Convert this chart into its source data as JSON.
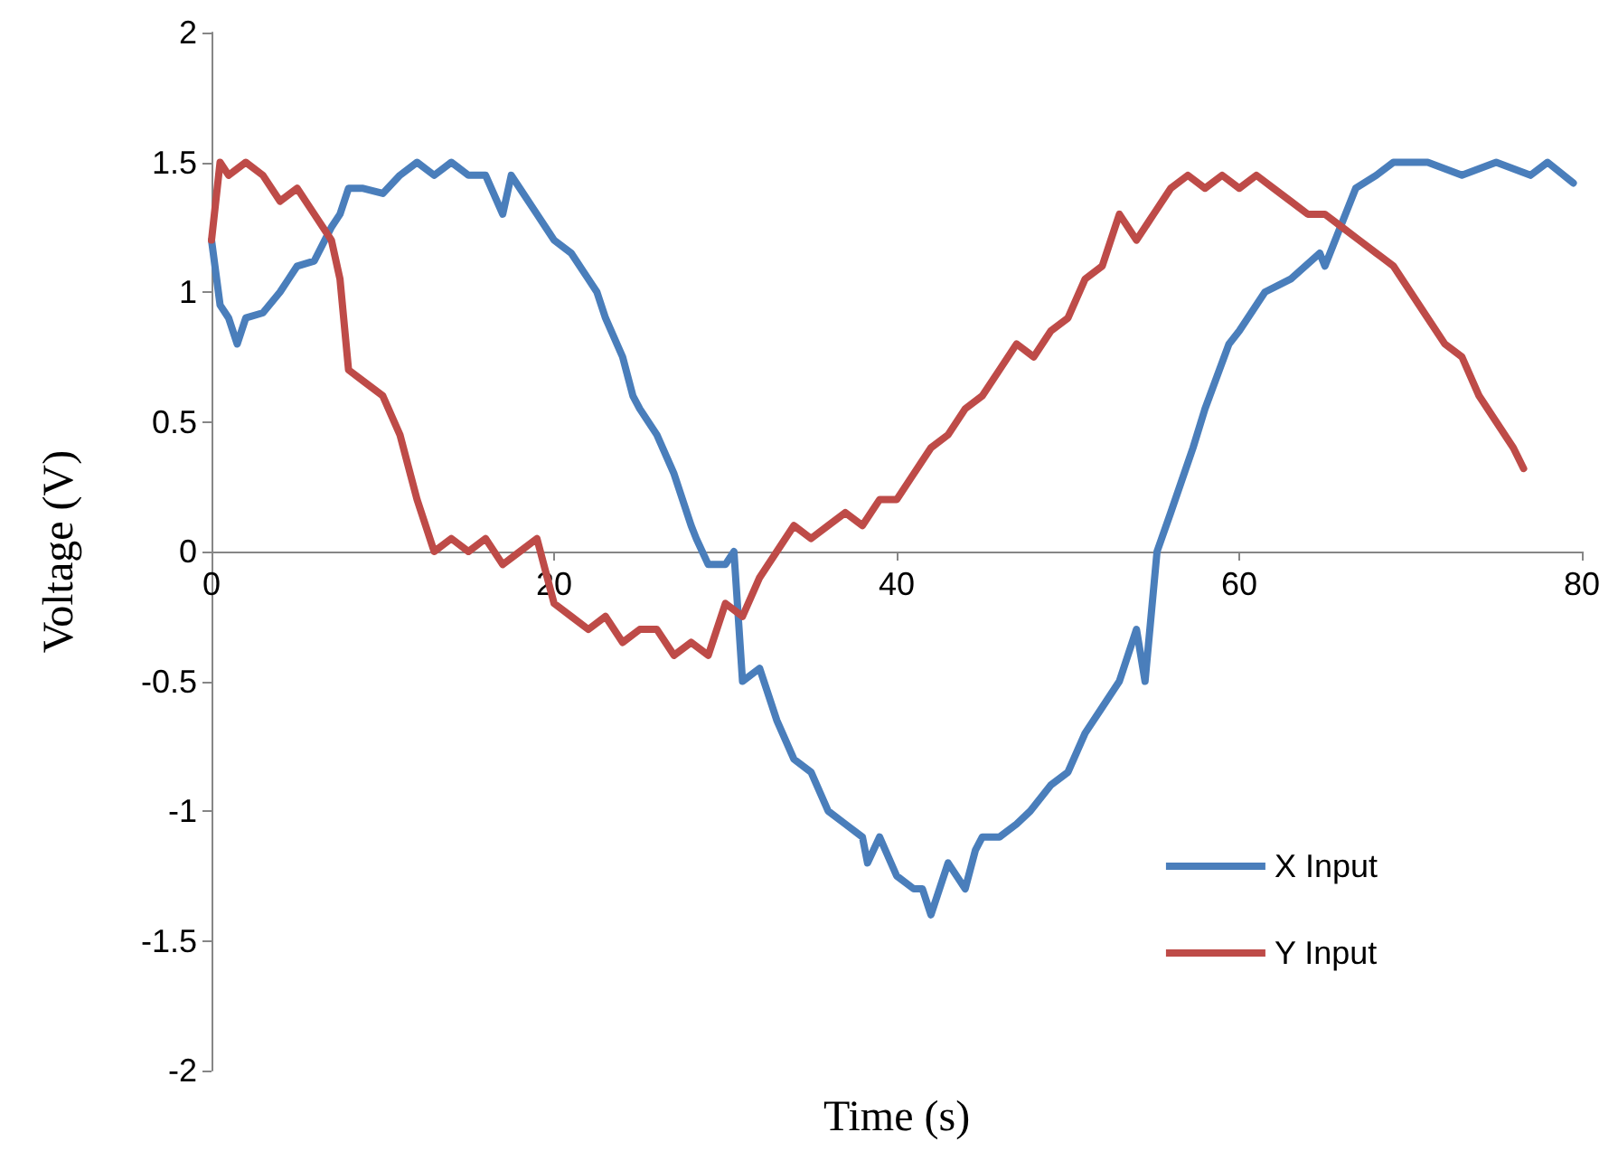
{
  "chart_data": {
    "type": "line",
    "xlabel": "Time (s)",
    "ylabel": "Voltage (V)",
    "xlim": [
      0,
      80
    ],
    "xticks": [
      0,
      20,
      40,
      60,
      80
    ],
    "ylim": [
      -2,
      2
    ],
    "yticks": [
      -2,
      -1.5,
      -1,
      -0.5,
      0,
      0.5,
      1,
      1.5,
      2
    ],
    "grid": false,
    "legend": "bottom right",
    "marker": "none",
    "line_style": "solid",
    "series": [
      {
        "name": "X Input",
        "color": "#4a7ebb",
        "x": [
          0,
          0.5,
          1,
          1.5,
          2,
          3,
          4,
          4.5,
          5,
          6,
          7,
          7.5,
          8,
          8.8,
          10,
          11,
          12,
          13,
          14,
          15,
          16,
          17,
          17.5,
          18,
          19,
          20,
          21,
          22,
          22.5,
          23,
          24,
          24.6,
          25,
          26,
          27,
          28,
          28.3,
          29,
          30,
          30.5,
          31,
          32,
          33,
          34,
          35,
          36,
          37,
          38,
          38.3,
          39,
          40,
          41,
          41.5,
          42,
          43,
          44,
          44.6,
          45,
          46,
          47,
          47.8,
          49,
          50,
          51,
          52,
          53,
          54,
          54.5,
          55.2,
          56,
          57.3,
          58,
          59.4,
          60,
          61.5,
          63,
          64.7,
          65,
          66.8,
          68,
          69,
          71,
          73,
          75,
          77,
          78,
          79.5
        ],
        "values": [
          1.2,
          0.95,
          0.9,
          0.8,
          0.9,
          0.92,
          1.0,
          1.05,
          1.1,
          1.12,
          1.25,
          1.3,
          1.4,
          1.4,
          1.38,
          1.45,
          1.5,
          1.45,
          1.5,
          1.45,
          1.45,
          1.3,
          1.45,
          1.4,
          1.3,
          1.2,
          1.15,
          1.05,
          1.0,
          0.9,
          0.75,
          0.6,
          0.55,
          0.45,
          0.3,
          0.1,
          0.05,
          -0.05,
          -0.05,
          0.0,
          -0.5,
          -0.45,
          -0.65,
          -0.8,
          -0.85,
          -1.0,
          -1.05,
          -1.1,
          -1.2,
          -1.1,
          -1.25,
          -1.3,
          -1.3,
          -1.4,
          -1.2,
          -1.3,
          -1.15,
          -1.1,
          -1.1,
          -1.05,
          -1.0,
          -0.9,
          -0.85,
          -0.7,
          -0.6,
          -0.5,
          -0.3,
          -0.5,
          0.0,
          0.15,
          0.4,
          0.55,
          0.8,
          0.85,
          1.0,
          1.05,
          1.15,
          1.1,
          1.4,
          1.45,
          1.5,
          1.5,
          1.45,
          1.5,
          1.45,
          1.5,
          1.42
        ]
      },
      {
        "name": "Y Input",
        "color": "#be4b48",
        "x": [
          0,
          0.5,
          1,
          2,
          3,
          4,
          5,
          6,
          7,
          7.5,
          8,
          9,
          10,
          11,
          12,
          13,
          14,
          15,
          16,
          17,
          18,
          19,
          20,
          21,
          22,
          23,
          24,
          25,
          26,
          27,
          28,
          29,
          30,
          31,
          32,
          33,
          34,
          35,
          36,
          37,
          38,
          39,
          40,
          41,
          42,
          43,
          44,
          45,
          46,
          47,
          48,
          49,
          50,
          51,
          52,
          53,
          54,
          55,
          56,
          57,
          58,
          59,
          60,
          61,
          62,
          63,
          64,
          65,
          66,
          67,
          68,
          69,
          70,
          71,
          72,
          73,
          74,
          75,
          76,
          76.6
        ],
        "values": [
          1.2,
          1.5,
          1.45,
          1.5,
          1.45,
          1.35,
          1.4,
          1.3,
          1.2,
          1.05,
          0.7,
          0.65,
          0.6,
          0.45,
          0.2,
          0.0,
          0.05,
          0.0,
          0.05,
          -0.05,
          0.0,
          0.05,
          -0.2,
          -0.25,
          -0.3,
          -0.25,
          -0.35,
          -0.3,
          -0.3,
          -0.4,
          -0.35,
          -0.4,
          -0.2,
          -0.25,
          -0.1,
          0.0,
          0.1,
          0.05,
          0.1,
          0.15,
          0.1,
          0.2,
          0.2,
          0.3,
          0.4,
          0.45,
          0.55,
          0.6,
          0.7,
          0.8,
          0.75,
          0.85,
          0.9,
          1.05,
          1.1,
          1.3,
          1.2,
          1.3,
          1.4,
          1.45,
          1.4,
          1.45,
          1.4,
          1.45,
          1.4,
          1.35,
          1.3,
          1.3,
          1.25,
          1.2,
          1.15,
          1.1,
          1.0,
          0.9,
          0.8,
          0.75,
          0.6,
          0.5,
          0.4,
          0.32
        ]
      }
    ]
  }
}
